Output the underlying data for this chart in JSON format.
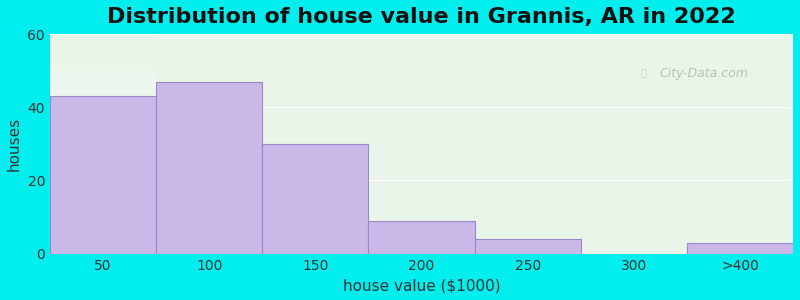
{
  "title": "Distribution of house value in Grannis, AR in 2022",
  "xlabel": "house value ($1000)",
  "ylabel": "houses",
  "bar_labels": [
    "50",
    "100",
    "150",
    "200",
    "250",
    "300",
    ">400"
  ],
  "bar_heights": [
    43,
    47,
    30,
    9,
    4,
    0,
    3
  ],
  "bar_color": "#C9B8E8",
  "bar_edge_color": "#9B88C4",
  "ylim": [
    0,
    60
  ],
  "yticks": [
    0,
    20,
    40,
    60
  ],
  "background_outer": "#00EEEE",
  "background_inner_top": "#e8f5e8",
  "background_inner_bottom": "#f0fff0",
  "title_fontsize": 16,
  "axis_label_fontsize": 11,
  "tick_fontsize": 10
}
